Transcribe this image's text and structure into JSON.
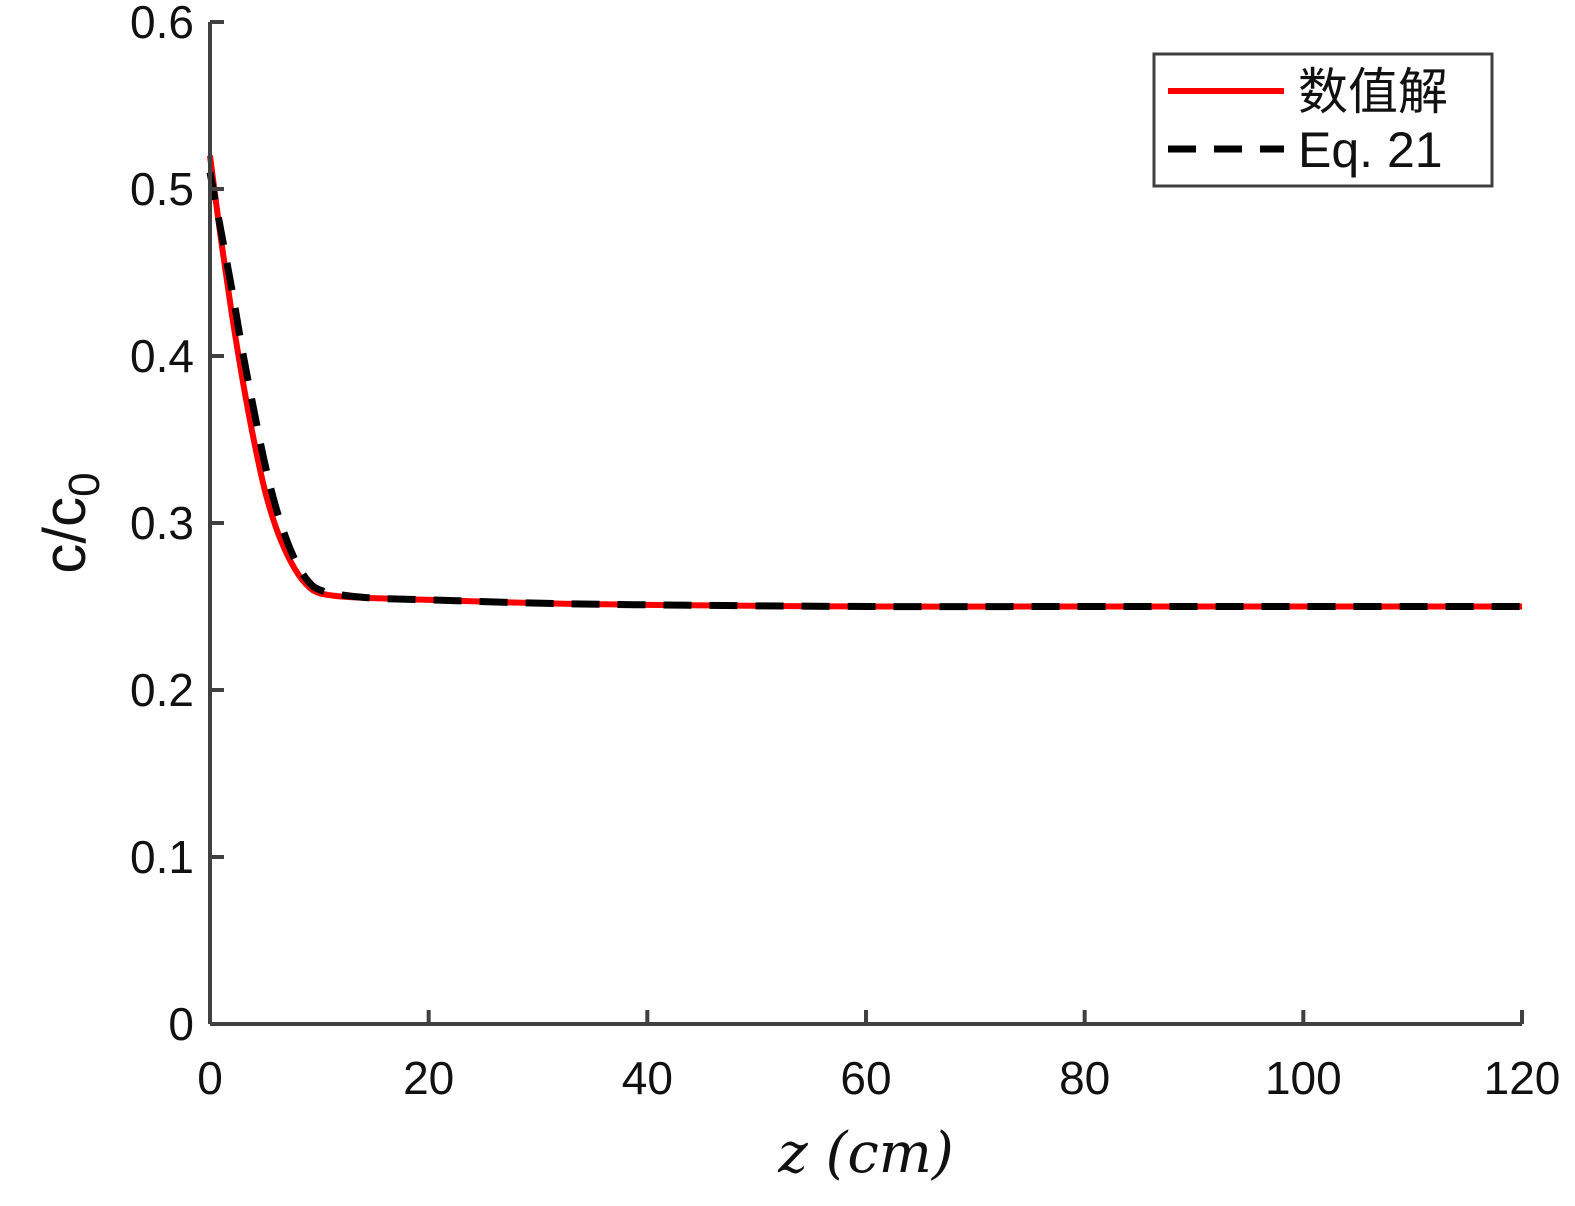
{
  "chart_data": {
    "type": "line",
    "title": "",
    "xlabel": "z (cm)",
    "ylabel": "c/c",
    "ylabel_subscript": "0",
    "xlim": [
      0,
      120
    ],
    "ylim": [
      0,
      0.6
    ],
    "xticks": [
      0,
      20,
      40,
      60,
      80,
      100,
      120
    ],
    "yticks": [
      0,
      0.1,
      0.2,
      0.3,
      0.4,
      0.5,
      0.6
    ],
    "xtick_labels": [
      "0",
      "20",
      "40",
      "60",
      "80",
      "100",
      "120"
    ],
    "ytick_labels": [
      "0",
      "0.1",
      "0.2",
      "0.3",
      "0.4",
      "0.5",
      "0.6"
    ],
    "grid": false,
    "legend_position": "top-right",
    "series": [
      {
        "name": "数值解",
        "color": "#ff0000",
        "style": "solid",
        "x": [
          0,
          1,
          2,
          3,
          4,
          5,
          6,
          7,
          8,
          9,
          10,
          12,
          15,
          20,
          30,
          40,
          60,
          80,
          100,
          120
        ],
        "y": [
          0.52,
          0.47,
          0.425,
          0.385,
          0.35,
          0.32,
          0.298,
          0.282,
          0.27,
          0.262,
          0.258,
          0.256,
          0.255,
          0.254,
          0.252,
          0.251,
          0.25,
          0.25,
          0.25,
          0.25
        ]
      },
      {
        "name": "Eq. 21",
        "color": "#000000",
        "style": "dashed",
        "x": [
          0,
          1,
          2,
          3,
          4,
          5,
          6,
          7,
          8,
          9,
          10,
          12,
          15,
          20,
          30,
          40,
          60,
          80,
          100,
          120
        ],
        "y": [
          0.51,
          0.475,
          0.44,
          0.402,
          0.368,
          0.336,
          0.31,
          0.29,
          0.275,
          0.265,
          0.26,
          0.257,
          0.255,
          0.254,
          0.252,
          0.251,
          0.25,
          0.25,
          0.25,
          0.25
        ]
      }
    ]
  }
}
